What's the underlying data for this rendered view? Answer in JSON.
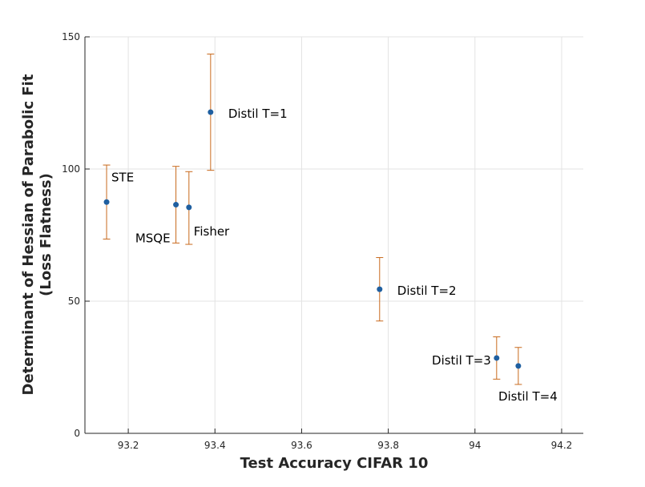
{
  "chart_data": {
    "type": "scatter",
    "xlabel": "Test Accuracy CIFAR 10",
    "ylabel_lines": [
      "Determinant of Hessian of Parabolic Fit",
      "(Loss Flatness)"
    ],
    "xlim": [
      93.1,
      94.25
    ],
    "ylim": [
      0,
      150
    ],
    "xticks": [
      93.2,
      93.4,
      93.6,
      93.8,
      94,
      94.2
    ],
    "xtick_labels": [
      "93.2",
      "93.4",
      "93.6",
      "93.8",
      "94",
      "94.2"
    ],
    "yticks": [
      0,
      50,
      100,
      150
    ],
    "ytick_labels": [
      "0",
      "50",
      "100",
      "150"
    ],
    "grid": true,
    "marker_color": "#1f5fa0",
    "errorbar_color": "#c8691c",
    "points": [
      {
        "label": "STE",
        "x": 93.15,
        "y": 87.5,
        "err_low": 73.5,
        "err_high": 101.5,
        "label_pos": "above-right"
      },
      {
        "label": "MSQE",
        "x": 93.31,
        "y": 86.5,
        "err_low": 72,
        "err_high": 101,
        "label_pos": "below-left"
      },
      {
        "label": "Fisher",
        "x": 93.34,
        "y": 85.5,
        "err_low": 71.5,
        "err_high": 99,
        "label_pos": "below-right"
      },
      {
        "label": "Distil T=1",
        "x": 93.39,
        "y": 121.5,
        "err_low": 99.5,
        "err_high": 143.5,
        "label_pos": "right"
      },
      {
        "label": "Distil T=2",
        "x": 93.78,
        "y": 54.5,
        "err_low": 42.5,
        "err_high": 66.5,
        "label_pos": "right"
      },
      {
        "label": "Distil T=3",
        "x": 94.05,
        "y": 28.5,
        "err_low": 20.5,
        "err_high": 36.5,
        "label_pos": "left"
      },
      {
        "label": "Distil T=4",
        "x": 94.1,
        "y": 25.5,
        "err_low": 18.5,
        "err_high": 32.5,
        "label_pos": "below"
      }
    ]
  }
}
